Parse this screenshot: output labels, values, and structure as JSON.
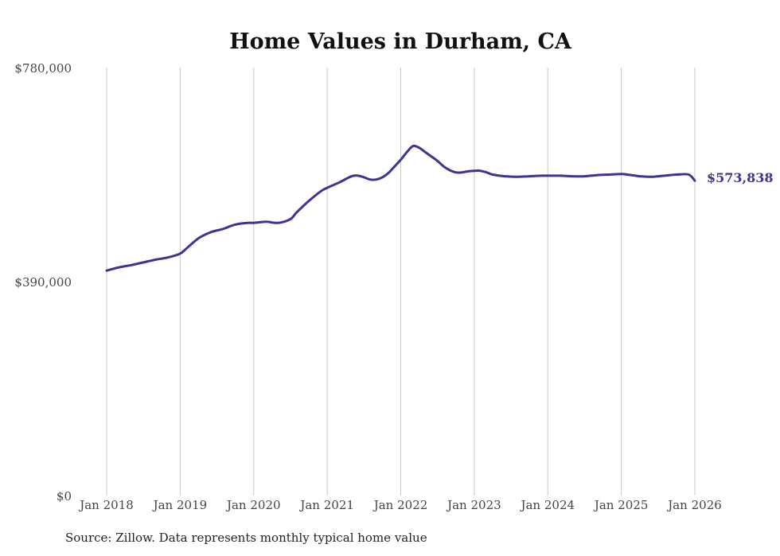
{
  "chart_data": {
    "type": "line",
    "title": "Home Values in Durham, CA",
    "xlabel": "",
    "ylabel": "",
    "ylim": [
      0,
      780000
    ],
    "y_ticks": [
      0,
      390000,
      780000
    ],
    "y_tick_labels": [
      "$0",
      "$390,000",
      "$780,000"
    ],
    "x_ticks": [
      2018,
      2019,
      2020,
      2021,
      2022,
      2023,
      2024,
      2025,
      2026
    ],
    "x_tick_labels": [
      "Jan 2018",
      "Jan 2019",
      "Jan 2020",
      "Jan 2021",
      "Jan 2022",
      "Jan 2023",
      "Jan 2024",
      "Jan 2025",
      "Jan 2026"
    ],
    "xlim": [
      2018,
      2026
    ],
    "grid": "vertical",
    "series": [
      {
        "name": "Typical home value",
        "color": "#3b3591",
        "x": [
          2018.0,
          2018.167,
          2018.333,
          2018.5,
          2018.667,
          2018.833,
          2019.0,
          2019.083,
          2019.25,
          2019.417,
          2019.583,
          2019.75,
          2019.917,
          2020.0,
          2020.167,
          2020.333,
          2020.5,
          2020.583,
          2020.75,
          2020.917,
          2021.0,
          2021.167,
          2021.333,
          2021.417,
          2021.5,
          2021.583,
          2021.667,
          2021.75,
          2021.833,
          2021.917,
          2022.0,
          2022.083,
          2022.167,
          2022.25,
          2022.333,
          2022.417,
          2022.5,
          2022.583,
          2022.667,
          2022.75,
          2022.833,
          2022.917,
          2023.0,
          2023.083,
          2023.167,
          2023.25,
          2023.417,
          2023.583,
          2023.75,
          2023.917,
          2024.0,
          2024.167,
          2024.333,
          2024.5,
          2024.667,
          2024.833,
          2025.0,
          2025.083,
          2025.25,
          2025.417,
          2025.583,
          2025.75,
          2025.917,
          2026.0
        ],
        "values": [
          410000,
          416000,
          420000,
          425000,
          430000,
          434000,
          441000,
          450000,
          469000,
          480000,
          486000,
          494000,
          497000,
          497000,
          499000,
          497000,
          504000,
          516000,
          537000,
          555000,
          561000,
          571000,
          582000,
          583000,
          580000,
          576000,
          576000,
          580000,
          588000,
          600000,
          612000,
          626000,
          637000,
          634000,
          626000,
          618000,
          610000,
          600000,
          593000,
          589000,
          589000,
          591000,
          592000,
          592000,
          589000,
          585000,
          582000,
          581000,
          582000,
          583000,
          583000,
          583000,
          582000,
          582000,
          584000,
          585000,
          586000,
          585000,
          582000,
          581000,
          583000,
          585000,
          585000,
          573838
        ]
      }
    ],
    "annotations": [
      {
        "text": "$573,838",
        "x": 2026.0,
        "y": 573838,
        "color": "#3b3591"
      }
    ]
  },
  "footer": {
    "source": "Source: Zillow. Data represents monthly typical home value"
  }
}
